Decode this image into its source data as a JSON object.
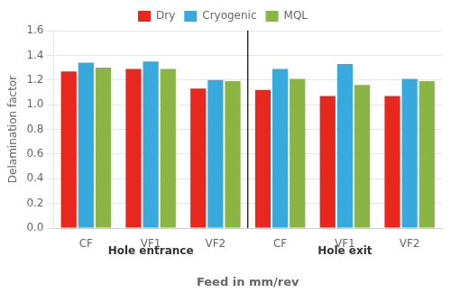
{
  "chart_data": {
    "type": "bar",
    "xlabel": "Feed in mm/rev",
    "ylabel": "Delamination factor",
    "categories": [
      "CF",
      "VF1",
      "VF2",
      "CF",
      "VF1",
      "VF2"
    ],
    "series": [
      {
        "name": "Dry",
        "color": "#e8281e",
        "values": [
          1.27,
          1.29,
          1.13,
          1.12,
          1.07,
          1.07
        ]
      },
      {
        "name": "Cryogenic",
        "color": "#38a9dc",
        "values": [
          1.34,
          1.35,
          1.2,
          1.29,
          1.33,
          1.21
        ]
      },
      {
        "name": "MQL",
        "color": "#8ab545",
        "values": [
          1.3,
          1.29,
          1.19,
          1.21,
          1.16,
          1.19
        ]
      }
    ],
    "annotations": [
      "Hole entrance",
      "Hole exit"
    ],
    "ylim": [
      0,
      1.6
    ],
    "yticks": [
      {
        "value": 0,
        "label": "0.0"
      },
      0.2,
      0.4,
      0.6,
      0.8,
      {
        "value": 1.0,
        "label": "1.0"
      },
      1.2,
      1.4,
      1.6
    ],
    "grid": true,
    "legend": "top"
  }
}
